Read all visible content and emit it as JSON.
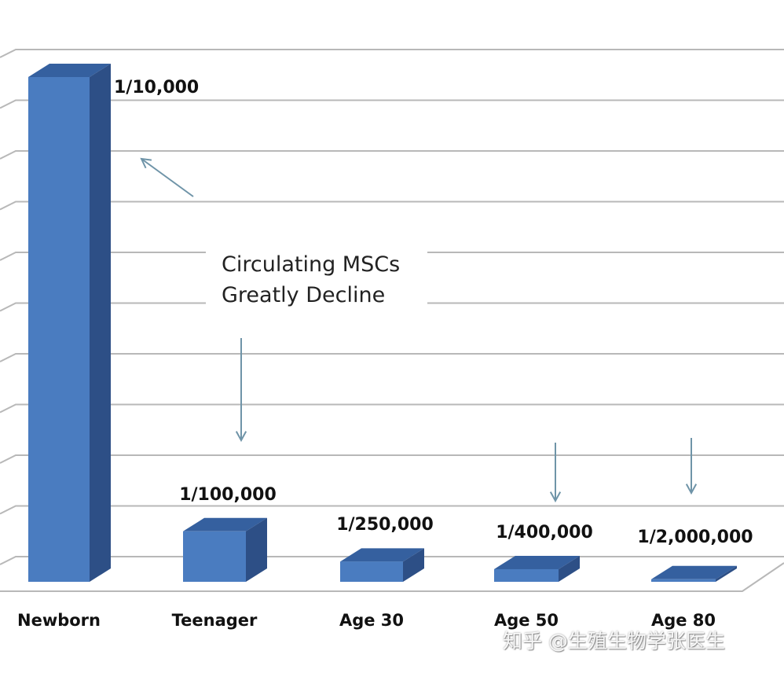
{
  "chart_data": {
    "type": "bar",
    "title": "",
    "xlabel": "",
    "ylabel": "",
    "categories": [
      "Newborn",
      "Teenager",
      "Age 30",
      "Age 50",
      "Age 80"
    ],
    "values": [
      10.0,
      1.0,
      0.4,
      0.25,
      0.05
    ],
    "value_labels": [
      "1/10,000",
      "1/100,000",
      "1/250,000",
      "1/400,000",
      "1/2,000,000"
    ],
    "ylim": [
      0,
      10
    ],
    "grid": true,
    "style": "3d",
    "bar_color": "#4a7cc0",
    "annotation": {
      "lines": [
        "Circulating MSCs",
        "Greatly Decline"
      ]
    }
  },
  "watermark": "知乎 @生殖生物学张医生"
}
